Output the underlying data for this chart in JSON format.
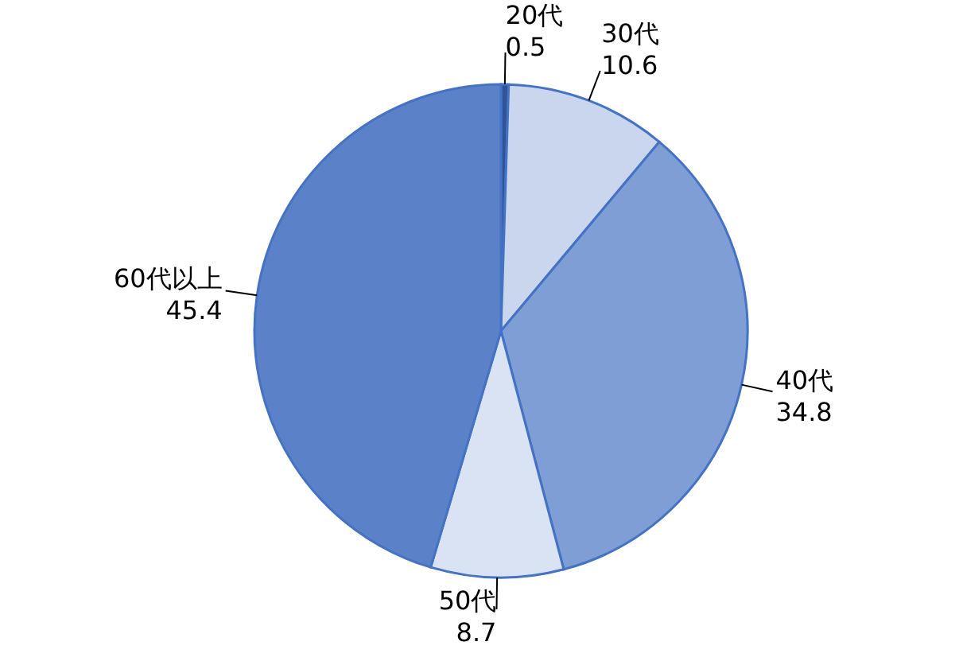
{
  "chart_data": {
    "type": "pie",
    "categories": [
      "20代",
      "30代",
      "40代",
      "50代",
      "60代以上"
    ],
    "values": [
      0.5,
      10.6,
      34.8,
      8.7,
      45.4
    ],
    "colors": [
      "#2f5597",
      "#c9d6ee",
      "#7f9ed6",
      "#dae3f3",
      "#5b82c9"
    ],
    "data_labels": true
  }
}
